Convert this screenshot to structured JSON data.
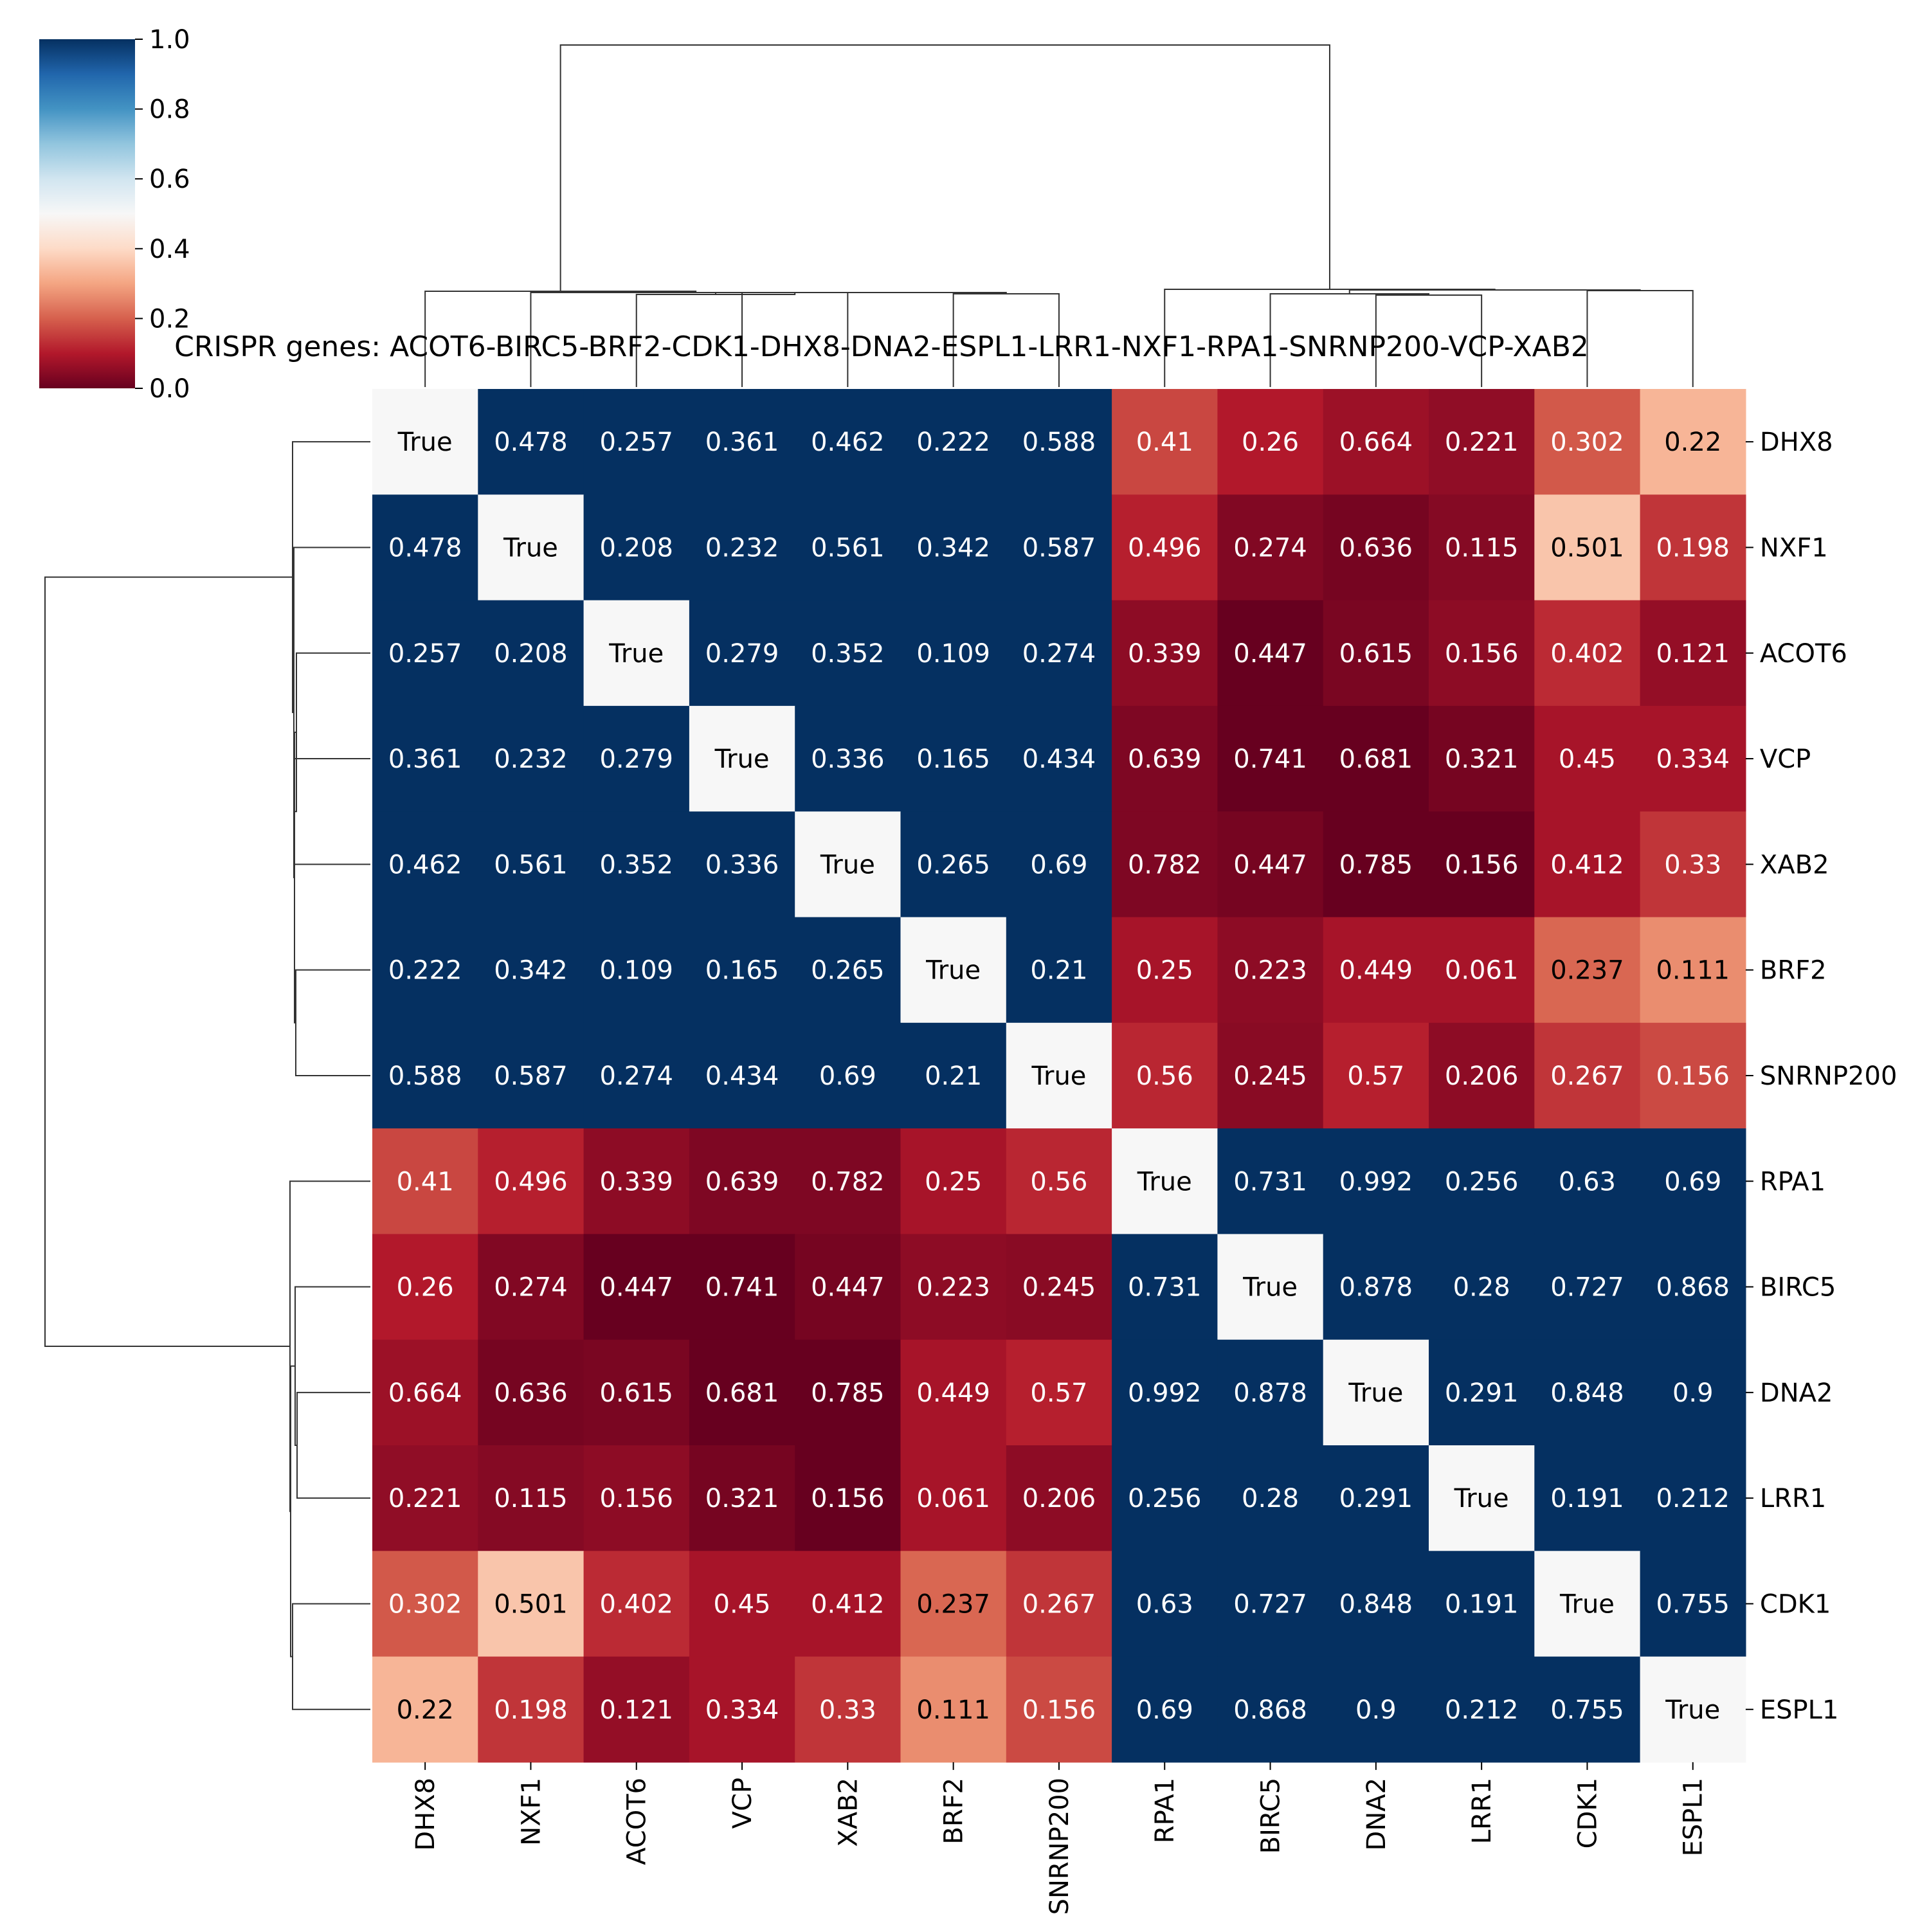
{
  "chart_data": {
    "type": "heatmap",
    "title": "CRISPR genes: ACOT6-BIRC5-BRF2-CDK1-DHX8-DNA2-ESPL1-LRR1-NXF1-RPA1-SNRNP200-VCP-XAB2",
    "row_labels": [
      "DHX8",
      "NXF1",
      "ACOT6",
      "VCP",
      "XAB2",
      "BRF2",
      "SNRNP200",
      "RPA1",
      "BIRC5",
      "DNA2",
      "LRR1",
      "CDK1",
      "ESPL1"
    ],
    "col_labels": [
      "DHX8",
      "NXF1",
      "ACOT6",
      "VCP",
      "XAB2",
      "BRF2",
      "SNRNP200",
      "RPA1",
      "BIRC5",
      "DNA2",
      "LRR1",
      "CDK1",
      "ESPL1"
    ],
    "diagonal_label": "True",
    "annotations": [
      [
        "True",
        "0.478",
        "0.257",
        "0.361",
        "0.462",
        "0.222",
        "0.588",
        "0.41",
        "0.26",
        "0.664",
        "0.221",
        "0.302",
        "0.22"
      ],
      [
        "0.478",
        "True",
        "0.208",
        "0.232",
        "0.561",
        "0.342",
        "0.587",
        "0.496",
        "0.274",
        "0.636",
        "0.115",
        "0.501",
        "0.198"
      ],
      [
        "0.257",
        "0.208",
        "True",
        "0.279",
        "0.352",
        "0.109",
        "0.274",
        "0.339",
        "0.447",
        "0.615",
        "0.156",
        "0.402",
        "0.121"
      ],
      [
        "0.361",
        "0.232",
        "0.279",
        "True",
        "0.336",
        "0.165",
        "0.434",
        "0.639",
        "0.741",
        "0.681",
        "0.321",
        "0.45",
        "0.334"
      ],
      [
        "0.462",
        "0.561",
        "0.352",
        "0.336",
        "True",
        "0.265",
        "0.69",
        "0.782",
        "0.447",
        "0.785",
        "0.156",
        "0.412",
        "0.33"
      ],
      [
        "0.222",
        "0.342",
        "0.109",
        "0.165",
        "0.265",
        "True",
        "0.21",
        "0.25",
        "0.223",
        "0.449",
        "0.061",
        "0.237",
        "0.111"
      ],
      [
        "0.588",
        "0.587",
        "0.274",
        "0.434",
        "0.69",
        "0.21",
        "True",
        "0.56",
        "0.245",
        "0.57",
        "0.206",
        "0.267",
        "0.156"
      ],
      [
        "0.41",
        "0.496",
        "0.339",
        "0.639",
        "0.782",
        "0.25",
        "0.56",
        "True",
        "0.731",
        "0.992",
        "0.256",
        "0.63",
        "0.69"
      ],
      [
        "0.26",
        "0.274",
        "0.447",
        "0.741",
        "0.447",
        "0.223",
        "0.245",
        "0.731",
        "True",
        "0.878",
        "0.28",
        "0.727",
        "0.868"
      ],
      [
        "0.664",
        "0.636",
        "0.615",
        "0.681",
        "0.785",
        "0.449",
        "0.57",
        "0.992",
        "0.878",
        "True",
        "0.291",
        "0.848",
        "0.9"
      ],
      [
        "0.221",
        "0.115",
        "0.156",
        "0.321",
        "0.156",
        "0.061",
        "0.206",
        "0.256",
        "0.28",
        "0.291",
        "True",
        "0.191",
        "0.212"
      ],
      [
        "0.302",
        "0.501",
        "0.402",
        "0.45",
        "0.412",
        "0.237",
        "0.267",
        "0.63",
        "0.727",
        "0.848",
        "0.191",
        "True",
        "0.755"
      ],
      [
        "0.22",
        "0.198",
        "0.121",
        "0.334",
        "0.33",
        "0.111",
        "0.156",
        "0.69",
        "0.868",
        "0.9",
        "0.212",
        "0.755",
        "True"
      ]
    ],
    "color_values": [
      [
        0.5,
        1,
        1,
        1,
        1,
        1,
        1,
        0.165,
        0.1,
        0.07,
        0.055,
        0.19,
        0.33
      ],
      [
        1,
        0.5,
        1,
        1,
        1,
        1,
        1,
        0.11,
        0.035,
        0.02,
        0.04,
        0.36,
        0.14
      ],
      [
        1,
        1,
        0.5,
        1,
        1,
        1,
        1,
        0.05,
        0.0,
        0.025,
        0.05,
        0.125,
        0.06
      ],
      [
        1,
        1,
        1,
        0.5,
        1,
        1,
        1,
        0.03,
        0.0,
        0.0,
        0.02,
        0.085,
        0.085
      ],
      [
        1,
        1,
        1,
        1,
        0.5,
        1,
        1,
        0.03,
        0.02,
        0.0,
        0.0,
        0.085,
        0.14
      ],
      [
        1,
        1,
        1,
        1,
        1,
        0.5,
        1,
        0.085,
        0.05,
        0.085,
        0.085,
        0.21,
        0.265
      ],
      [
        1,
        1,
        1,
        1,
        1,
        1,
        0.5,
        0.12,
        0.045,
        0.11,
        0.05,
        0.14,
        0.17
      ],
      [
        0.165,
        0.11,
        0.05,
        0.03,
        0.03,
        0.085,
        0.12,
        0.5,
        1,
        1,
        1,
        1,
        1
      ],
      [
        0.1,
        0.035,
        0.0,
        0.0,
        0.02,
        0.05,
        0.045,
        1,
        0.5,
        1,
        1,
        1,
        1
      ],
      [
        0.07,
        0.02,
        0.025,
        0.0,
        0.0,
        0.085,
        0.11,
        1,
        1,
        0.5,
        1,
        1,
        1
      ],
      [
        0.055,
        0.04,
        0.05,
        0.02,
        0.0,
        0.085,
        0.05,
        1,
        1,
        1,
        0.5,
        1,
        1
      ],
      [
        0.19,
        0.36,
        0.125,
        0.085,
        0.085,
        0.21,
        0.14,
        1,
        1,
        1,
        1,
        0.5,
        1
      ],
      [
        0.33,
        0.14,
        0.06,
        0.085,
        0.14,
        0.265,
        0.17,
        1,
        1,
        1,
        1,
        1,
        0.5
      ]
    ],
    "vmin": 0.0,
    "vmax": 1.0,
    "colormap": "RdBu",
    "colorbar": {
      "position": "top-left",
      "ticks": [
        "0.0",
        "0.2",
        "0.4",
        "0.6",
        "0.8",
        "1.0"
      ]
    },
    "dendrogram": {
      "order": [
        "DHX8",
        "NXF1",
        "ACOT6",
        "VCP",
        "XAB2",
        "BRF2",
        "SNRNP200",
        "RPA1",
        "BIRC5",
        "DNA2",
        "LRR1",
        "CDK1",
        "ESPL1"
      ],
      "groups": [
        [
          "DHX8",
          "NXF1",
          "ACOT6",
          "VCP",
          "XAB2",
          "BRF2",
          "SNRNP200"
        ],
        [
          "RPA1",
          "BIRC5",
          "DNA2",
          "LRR1",
          "CDK1",
          "ESPL1"
        ]
      ]
    }
  }
}
